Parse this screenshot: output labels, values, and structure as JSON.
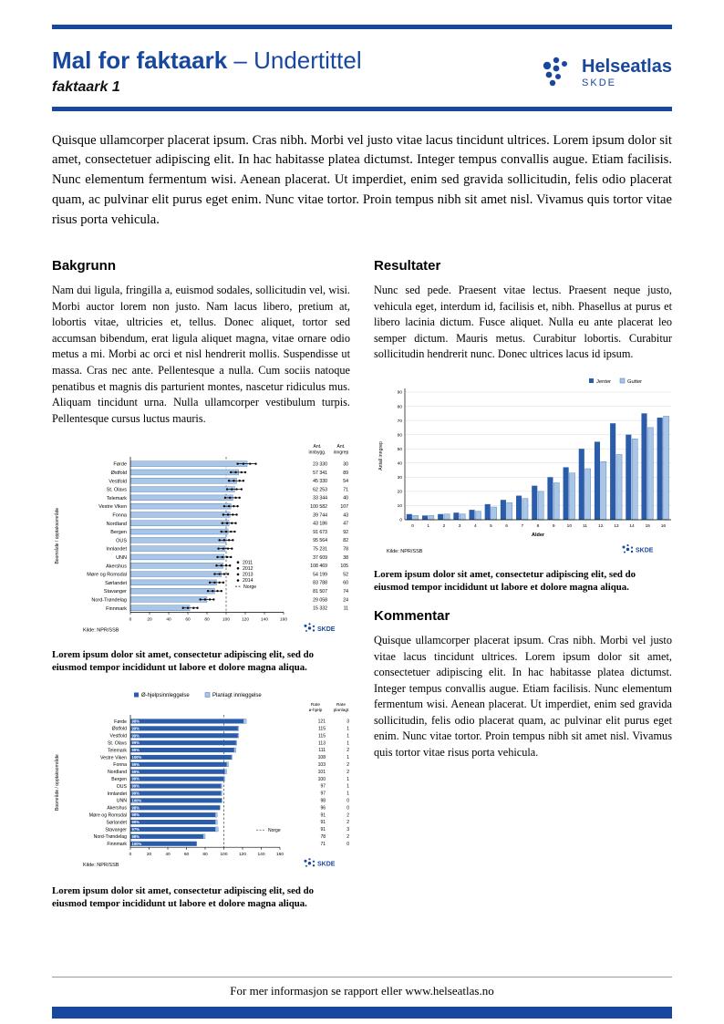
{
  "page": {
    "title_bold": "Mal for faktaark",
    "title_rest": "– Undertittel",
    "subtitle": "faktaark 1",
    "footer": "For mer informasjon se rapport eller www.helseatlas.no"
  },
  "logo": {
    "name": "Helseatlas",
    "sub": "SKDE"
  },
  "colors": {
    "brand": "#17479E",
    "bar_light": "#A9C6E6",
    "bar_light_border": "#4472B8",
    "bar_dark": "#2A5CAA",
    "grid": "#D9D9D9"
  },
  "intro": "Quisque ullamcorper placerat ipsum. Cras nibh. Morbi vel justo vitae lacus tincidunt ultrices. Lorem ipsum dolor sit amet, consectetuer adipiscing elit. In hac habitasse platea dictumst. Integer tempus convallis augue. Etiam facilisis. Nunc elementum fermentum wisi. Aenean placerat. Ut imperdiet, enim sed gravida sollicitudin, felis odio placerat quam, ac pulvinar elit purus eget enim. Nunc vitae tortor. Proin tempus nibh sit amet nisl. Vivamus quis tortor vitae risus porta vehicula.",
  "sections": {
    "bakgrunn": {
      "heading": "Bakgrunn",
      "body": "Nam dui ligula, fringilla a, euismod sodales, sollicitudin vel, wisi. Morbi auctor lorem non justo. Nam lacus libero, pretium at, lobortis vitae, ultricies et, tellus. Donec aliquet, tortor sed accumsan bibendum, erat ligula aliquet magna, vitae ornare odio metus a mi. Morbi ac orci et nisl hendrerit mollis. Suspendisse ut massa. Cras nec ante. Pellentesque a nulla. Cum sociis natoque penatibus et magnis dis parturient montes, nascetur ridiculus mus. Aliquam tincidunt urna. Nulla ullamcorper vestibulum turpis. Pellentesque cursus luctus mauris."
    },
    "resultater": {
      "heading": "Resultater",
      "body": "Nunc sed pede. Praesent vitae lectus. Praesent neque justo, vehicula eget, interdum id, facilisis et, nibh. Phasellus at purus et libero lacinia dictum. Fusce aliquet. Nulla eu ante placerat leo semper dictum. Mauris metus. Curabitur lobortis. Curabitur sollicitudin hendrerit nunc. Donec ultrices lacus id ipsum."
    },
    "kommentar": {
      "heading": "Kommentar",
      "body": "Quisque ullamcorper placerat ipsum. Cras nibh. Morbi vel justo vitae lacus tincidunt ultrices. Lorem ipsum dolor sit amet, consectetuer adipiscing elit. In hac habitasse platea dictumst. Integer tempus convallis augue. Etiam facilisis. Nunc elementum fermentum wisi. Aenean placerat. Ut imperdiet, enim sed gravida sollicitudin, felis odio placerat quam, ac pulvinar elit purus eget enim. Nunc vitae tortor. Proin tempus nibh sit amet nisl. Vivamus quis tortor vitae risus porta vehicula."
    }
  },
  "captions": {
    "fig1": "Lorem ipsum dolor sit amet, consectetur adipiscing elit, sed do eiusmod tempor incididunt ut labore et dolore magna aliqua.",
    "fig2": "Lorem ipsum dolor sit amet, consectetur adipiscing elit, sed do eiusmod tempor incididunt ut labore et dolore magna aliqua.",
    "fig3": "Lorem ipsum dolor sit amet, consectetur adipiscing elit, sed do eiusmod tempor incididunt ut labore et dolore magna aliqua."
  },
  "chart_data": [
    {
      "id": "fig1",
      "type": "bar",
      "orientation": "horizontal",
      "ylabel": "Boområde / opptaksområde",
      "col_headers": [
        "Ant. innbygg.",
        "Ant. inngrep"
      ],
      "xlim": [
        0,
        160
      ],
      "x_ticks": [
        0,
        20,
        40,
        60,
        80,
        100,
        120,
        140,
        160
      ],
      "norge_line": 100,
      "legend_years": [
        "2011",
        "2012",
        "2013",
        "2014"
      ],
      "legend_norge": "Norge",
      "source": "Kilde: NPR/SSB",
      "regions": [
        "Førde",
        "Østfold",
        "Vestfold",
        "St. Olavs",
        "Telemark",
        "Vestre Viken",
        "Fonna",
        "Nordland",
        "Bergen",
        "OUS",
        "Innlandet",
        "UNN",
        "Akershus",
        "Møre og Romsdal",
        "Sørlandet",
        "Stavanger",
        "Nord-Trøndelag",
        "Finnmark"
      ],
      "rate": [
        122,
        113,
        111,
        109,
        107,
        105,
        104,
        103,
        102,
        100,
        99,
        98,
        97,
        95,
        90,
        88,
        80,
        62
      ],
      "year_dots": [
        [
          112,
          118,
          125,
          131
        ],
        [
          105,
          110,
          116,
          120
        ],
        [
          103,
          108,
          114,
          118
        ],
        [
          101,
          106,
          111,
          116
        ],
        [
          99,
          104,
          110,
          114
        ],
        [
          98,
          103,
          108,
          112
        ],
        [
          97,
          102,
          107,
          111
        ],
        [
          96,
          101,
          106,
          110
        ],
        [
          95,
          100,
          105,
          109
        ],
        [
          93,
          98,
          103,
          107
        ],
        [
          92,
          97,
          102,
          106
        ],
        [
          91,
          96,
          101,
          105
        ],
        [
          90,
          95,
          100,
          104
        ],
        [
          88,
          93,
          98,
          102
        ],
        [
          83,
          88,
          93,
          97
        ],
        [
          81,
          86,
          91,
          95
        ],
        [
          73,
          78,
          83,
          87
        ],
        [
          55,
          60,
          66,
          70
        ]
      ],
      "innbygg": [
        "23 330",
        "57 341",
        "45 330",
        "62 253",
        "33 344",
        "100 582",
        "39 744",
        "43 186",
        "91 673",
        "95 564",
        "75 231",
        "37 609",
        "108 469",
        "54 199",
        "83 788",
        "81 507",
        "29 058",
        "15 332"
      ],
      "inngrep": [
        30,
        89,
        54,
        71,
        40,
        107,
        43,
        47,
        92,
        82,
        78,
        38,
        105,
        52,
        60,
        74,
        24,
        11
      ]
    },
    {
      "id": "fig2",
      "type": "bar",
      "orientation": "vertical",
      "xlabel": "Alder",
      "ylabel": "Antall inngrep",
      "categories": [
        "0",
        "1",
        "2",
        "3",
        "4",
        "5",
        "6",
        "7",
        "8",
        "9",
        "10",
        "11",
        "12",
        "13",
        "14",
        "15",
        "16"
      ],
      "ylim": [
        0,
        90
      ],
      "y_ticks": [
        0,
        10,
        20,
        30,
        40,
        50,
        60,
        70,
        80,
        90
      ],
      "series": [
        {
          "name": "Jenter",
          "values": [
            4,
            3,
            4,
            5,
            7,
            11,
            14,
            17,
            24,
            30,
            37,
            50,
            55,
            68,
            60,
            75,
            72
          ]
        },
        {
          "name": "Gutter",
          "values": [
            3,
            3,
            4,
            4,
            6,
            9,
            12,
            15,
            20,
            26,
            33,
            36,
            41,
            46,
            57,
            65,
            73
          ]
        }
      ],
      "source": "Kilde: NPR/SSB"
    },
    {
      "id": "fig3",
      "type": "bar",
      "orientation": "horizontal",
      "stacked": true,
      "legend": [
        "Ø-hjelpsinnleggelse",
        "Planlagt innleggelse"
      ],
      "ylabel": "Boområde / opptaksområde",
      "col_headers": [
        "Rate ø-hjelp",
        "Rate planlagt"
      ],
      "xlim": [
        0,
        160
      ],
      "x_ticks": [
        0,
        20,
        40,
        60,
        80,
        100,
        120,
        140,
        160
      ],
      "norge_line": 100,
      "norge_label": "Norge",
      "source": "Kilde: NPR/SSB",
      "regions": [
        "Førde",
        "Østfold",
        "Vestfold",
        "St. Olavs",
        "Telemark",
        "Vestre Viken",
        "Fonna",
        "Nordland",
        "Bergen",
        "OUS",
        "Innlandet",
        "UNN",
        "Akershus",
        "Møre og Romsdal",
        "Sørlandet",
        "Stavanger",
        "Nord-Trøndelag",
        "Finnmark"
      ],
      "pct": [
        "98%",
        "99%",
        "99%",
        "99%",
        "99%",
        "100%",
        "99%",
        "99%",
        "99%",
        "99%",
        "99%",
        "100%",
        "98%",
        "98%",
        "99%",
        "97%",
        "98%",
        "100%"
      ],
      "rate_ohjelp": [
        121,
        115,
        115,
        113,
        111,
        108,
        103,
        101,
        100,
        97,
        97,
        98,
        96,
        91,
        91,
        91,
        78,
        71
      ],
      "rate_planlagt": [
        3,
        1,
        1,
        1,
        2,
        1,
        2,
        2,
        1,
        1,
        1,
        0,
        0,
        2,
        2,
        3,
        2,
        0
      ]
    }
  ]
}
